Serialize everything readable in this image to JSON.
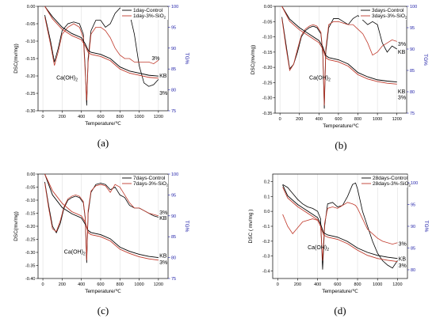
{
  "chart_data": [
    {
      "type": "line",
      "panel": "(a)",
      "xlabel": "Temperature/℃",
      "ylabel": "DSC(mv/mg)",
      "y2label": "TG%",
      "xlim": [
        -50,
        1300
      ],
      "xticks": [
        0,
        200,
        400,
        600,
        800,
        1000,
        1200
      ],
      "ylim": [
        -0.3,
        0.0
      ],
      "yticks": [
        "0.00",
        "-0.05",
        "-0.10",
        "-0.15",
        "-0.20",
        "-0.25",
        "-0.30"
      ],
      "y2lim": [
        75,
        100
      ],
      "y2ticks": [
        "100",
        "95",
        "90",
        "85",
        "80",
        "75"
      ],
      "legend": "top-right",
      "series": [
        {
          "name": "1day-Control",
          "color": "#000000",
          "axis": "dsc",
          "x": [
            20,
            80,
            120,
            160,
            200,
            260,
            320,
            380,
            420,
            440,
            455,
            470,
            500,
            550,
            600,
            650,
            700,
            750,
            800,
            850,
            900,
            950,
            1000,
            1050,
            1100,
            1150,
            1200
          ],
          "y": [
            -0.025,
            -0.1,
            -0.16,
            -0.12,
            -0.07,
            -0.05,
            -0.045,
            -0.05,
            -0.08,
            -0.18,
            -0.285,
            -0.15,
            -0.07,
            -0.04,
            -0.04,
            -0.06,
            -0.05,
            -0.02,
            -0.005,
            -0.003,
            -0.02,
            -0.08,
            -0.17,
            -0.22,
            -0.23,
            -0.225,
            -0.21
          ]
        },
        {
          "name": "1day-3%-SiO2",
          "color": "#c0392b",
          "axis": "dsc",
          "x": [
            20,
            80,
            120,
            160,
            200,
            260,
            320,
            380,
            420,
            440,
            455,
            470,
            500,
            550,
            600,
            650,
            700,
            750,
            800,
            850,
            900,
            950,
            1000,
            1050,
            1100,
            1150,
            1200
          ],
          "y": [
            -0.03,
            -0.11,
            -0.17,
            -0.13,
            -0.08,
            -0.06,
            -0.05,
            -0.06,
            -0.09,
            -0.19,
            -0.27,
            -0.16,
            -0.08,
            -0.06,
            -0.06,
            -0.07,
            -0.09,
            -0.12,
            -0.14,
            -0.15,
            -0.15,
            -0.16,
            -0.16,
            -0.16,
            -0.16,
            -0.165,
            -0.155
          ]
        },
        {
          "name": "KB",
          "color": "#000000",
          "axis": "tg",
          "x": [
            20,
            100,
            200,
            300,
            400,
            440,
            470,
            500,
            600,
            700,
            800,
            900,
            1000,
            1100,
            1200
          ],
          "y": [
            100,
            97.5,
            95,
            93.5,
            92.5,
            91,
            89.5,
            89,
            88.5,
            87.5,
            85.5,
            84.5,
            84,
            83.5,
            83.3
          ]
        },
        {
          "name": "3%",
          "color": "#c0392b",
          "axis": "tg",
          "x": [
            20,
            100,
            200,
            300,
            400,
            440,
            470,
            500,
            600,
            700,
            800,
            900,
            1000,
            1100,
            1200
          ],
          "y": [
            100,
            97,
            94.5,
            93,
            92,
            90.5,
            89,
            88.5,
            88,
            87,
            85,
            84,
            83.5,
            83,
            82.8
          ]
        }
      ],
      "annotations": [
        {
          "text": "Ca(OH)",
          "sub": "2",
          "x": 140,
          "y": -0.21
        },
        {
          "text": "KB",
          "x": 1210,
          "y": -0.205
        },
        {
          "text": "3%",
          "x": 1210,
          "y": -0.255
        },
        {
          "text": "3%",
          "x": 1130,
          "y": -0.155
        }
      ]
    },
    {
      "type": "line",
      "panel": "(b)",
      "xlabel": "Temperature/℃",
      "ylabel": "DSC(mv/mg)",
      "y2label": "TG%",
      "xlim": [
        -50,
        1300
      ],
      "xticks": [
        0,
        200,
        400,
        600,
        800,
        1000,
        1200
      ],
      "ylim": [
        -0.35,
        0.0
      ],
      "yticks": [
        "0.00",
        "-0.05",
        "-0.10",
        "-0.15",
        "-0.20",
        "-0.25",
        "-0.30",
        "-0.35"
      ],
      "y2lim": [
        75,
        100
      ],
      "y2ticks": [
        "100",
        "95",
        "90",
        "85",
        "80",
        "75"
      ],
      "legend": "top-right",
      "series": [
        {
          "name": "3days-Control",
          "color": "#000000",
          "axis": "dsc",
          "x": [
            20,
            60,
            100,
            140,
            180,
            220,
            260,
            300,
            340,
            380,
            420,
            440,
            455,
            470,
            500,
            550,
            600,
            650,
            700,
            750,
            800,
            850,
            900,
            950,
            1000,
            1050,
            1100,
            1150,
            1200
          ],
          "y": [
            -0.035,
            -0.12,
            -0.205,
            -0.19,
            -0.15,
            -0.1,
            -0.08,
            -0.07,
            -0.065,
            -0.07,
            -0.09,
            -0.16,
            -0.335,
            -0.15,
            -0.07,
            -0.04,
            -0.04,
            -0.05,
            -0.06,
            -0.04,
            -0.03,
            -0.045,
            -0.06,
            -0.05,
            -0.06,
            -0.12,
            -0.15,
            -0.13,
            -0.14
          ]
        },
        {
          "name": "3days-3%-SiO2",
          "color": "#c0392b",
          "axis": "dsc",
          "x": [
            20,
            60,
            100,
            140,
            180,
            220,
            260,
            300,
            340,
            380,
            420,
            440,
            455,
            470,
            500,
            550,
            600,
            650,
            700,
            750,
            800,
            850,
            900,
            950,
            1000,
            1050,
            1100,
            1150,
            1200
          ],
          "y": [
            -0.04,
            -0.13,
            -0.21,
            -0.19,
            -0.14,
            -0.095,
            -0.075,
            -0.065,
            -0.06,
            -0.065,
            -0.085,
            -0.15,
            -0.325,
            -0.14,
            -0.06,
            -0.05,
            -0.05,
            -0.055,
            -0.06,
            -0.06,
            -0.075,
            -0.09,
            -0.12,
            -0.16,
            -0.15,
            -0.13,
            -0.12,
            -0.11,
            -0.115
          ]
        },
        {
          "name": "KB",
          "color": "#000000",
          "axis": "tg",
          "x": [
            20,
            100,
            200,
            300,
            400,
            440,
            470,
            500,
            600,
            700,
            800,
            900,
            1000,
            1100,
            1200
          ],
          "y": [
            100,
            97,
            95,
            93.5,
            92,
            90.5,
            88.5,
            88,
            87.5,
            86.5,
            84.5,
            83.5,
            82.8,
            82.5,
            82.3
          ]
        },
        {
          "name": "3%",
          "color": "#c0392b",
          "axis": "tg",
          "x": [
            20,
            100,
            200,
            300,
            400,
            440,
            470,
            500,
            600,
            700,
            800,
            900,
            1000,
            1100,
            1200
          ],
          "y": [
            100,
            96.5,
            94.5,
            93,
            91.5,
            90,
            88,
            87.5,
            87,
            86,
            84,
            83,
            82.4,
            82,
            81.8
          ]
        }
      ],
      "annotations": [
        {
          "text": "Ca(OH)",
          "sub": "2",
          "x": 300,
          "y": -0.24
        },
        {
          "text": "KB",
          "x": 1210,
          "y": -0.285
        },
        {
          "text": "3%",
          "x": 1210,
          "y": -0.305
        },
        {
          "text": "3%",
          "x": 1210,
          "y": -0.13
        },
        {
          "text": "KB",
          "x": 1210,
          "y": -0.155
        }
      ]
    },
    {
      "type": "line",
      "panel": "(c)",
      "xlabel": "Temperature/℃",
      "ylabel": "DSC(mv/mg)",
      "y2label": "TG%",
      "xlim": [
        -50,
        1300
      ],
      "xticks": [
        0,
        200,
        400,
        600,
        800,
        1000,
        1200
      ],
      "ylim": [
        -0.4,
        0.0
      ],
      "yticks": [
        "0.00",
        "-0.05",
        "-0.10",
        "-0.15",
        "-0.20",
        "-0.25",
        "-0.30",
        "-0.35",
        "-0.40"
      ],
      "y2lim": [
        75,
        100
      ],
      "y2ticks": [
        "100",
        "95",
        "90",
        "85",
        "80",
        "75"
      ],
      "legend": "top-right",
      "series": [
        {
          "name": "7days-Control",
          "color": "#000000",
          "axis": "dsc",
          "x": [
            20,
            60,
            100,
            140,
            180,
            220,
            260,
            300,
            340,
            380,
            420,
            440,
            455,
            470,
            500,
            550,
            600,
            650,
            700,
            750,
            800,
            850,
            900,
            950,
            1000,
            1050,
            1100,
            1150,
            1200
          ],
          "y": [
            -0.03,
            -0.12,
            -0.2,
            -0.225,
            -0.19,
            -0.13,
            -0.1,
            -0.09,
            -0.085,
            -0.09,
            -0.11,
            -0.17,
            -0.34,
            -0.15,
            -0.07,
            -0.04,
            -0.035,
            -0.04,
            -0.06,
            -0.05,
            -0.08,
            -0.09,
            -0.12,
            -0.13,
            -0.13,
            -0.14,
            -0.15,
            -0.16,
            -0.165
          ]
        },
        {
          "name": "7days-3%-SiO2",
          "color": "#c0392b",
          "axis": "dsc",
          "x": [
            20,
            60,
            100,
            140,
            180,
            220,
            260,
            300,
            340,
            380,
            420,
            440,
            455,
            470,
            500,
            550,
            600,
            650,
            700,
            750,
            800,
            850,
            900,
            950,
            1000,
            1050,
            1100,
            1150,
            1200
          ],
          "y": [
            -0.035,
            -0.13,
            -0.21,
            -0.22,
            -0.18,
            -0.125,
            -0.095,
            -0.085,
            -0.08,
            -0.085,
            -0.105,
            -0.165,
            -0.33,
            -0.14,
            -0.065,
            -0.045,
            -0.04,
            -0.045,
            -0.07,
            -0.04,
            -0.05,
            -0.08,
            -0.11,
            -0.13,
            -0.13,
            -0.14,
            -0.15,
            -0.155,
            -0.16
          ]
        },
        {
          "name": "KB",
          "color": "#000000",
          "axis": "tg",
          "x": [
            20,
            100,
            200,
            300,
            400,
            440,
            470,
            500,
            600,
            700,
            800,
            900,
            1000,
            1100,
            1200
          ],
          "y": [
            100,
            95,
            92,
            90.5,
            89.5,
            88,
            86.5,
            86,
            85.5,
            84.5,
            82.5,
            81.5,
            80.8,
            80.3,
            80
          ]
        },
        {
          "name": "3%",
          "color": "#c0392b",
          "axis": "tg",
          "x": [
            20,
            100,
            200,
            300,
            400,
            440,
            470,
            500,
            600,
            700,
            800,
            900,
            1000,
            1100,
            1200
          ],
          "y": [
            100,
            96,
            93,
            91,
            90,
            88.5,
            86,
            85.5,
            85,
            84,
            82,
            81,
            80.2,
            79.7,
            79.4
          ]
        }
      ],
      "annotations": [
        {
          "text": "Ca(OH)",
          "sub": "2",
          "x": 220,
          "y": -0.305
        },
        {
          "text": "KB",
          "x": 1210,
          "y": -0.32
        },
        {
          "text": "3%",
          "x": 1210,
          "y": -0.345
        },
        {
          "text": "3%",
          "x": 1210,
          "y": -0.155
        },
        {
          "text": "KB",
          "x": 1210,
          "y": -0.175
        }
      ]
    },
    {
      "type": "line",
      "panel": "(d)",
      "xlabel": "Temperature/℃",
      "ylabel": "DSC ( mv/mg )",
      "y2label": "TG%",
      "xlim": [
        -50,
        1300
      ],
      "xticks": [
        0,
        200,
        400,
        600,
        800,
        1000,
        1200
      ],
      "ylim": [
        -0.45,
        0.25
      ],
      "yticks": [
        "0.2",
        "0.1",
        "0.0",
        "-0.1",
        "-0.2",
        "-0.3",
        "-0.4"
      ],
      "y2lim": [
        78,
        102
      ],
      "y2ticks": [
        "100",
        "95",
        "90",
        "85",
        "80"
      ],
      "legend": "top-right",
      "series": [
        {
          "name": "28days-Control",
          "color": "#000000",
          "axis": "dsc",
          "x": [
            50,
            100,
            150,
            200,
            250,
            300,
            350,
            400,
            430,
            450,
            470,
            500,
            550,
            600,
            650,
            700,
            750,
            780,
            800,
            850,
            900,
            950,
            1000,
            1050,
            1100,
            1150,
            1200
          ],
          "y": [
            0.18,
            0.16,
            0.12,
            0.08,
            0.05,
            0.03,
            0.02,
            0.0,
            -0.05,
            -0.39,
            -0.1,
            0.05,
            0.06,
            0.03,
            0.04,
            0.1,
            0.18,
            0.19,
            0.15,
            0.0,
            -0.1,
            -0.2,
            -0.28,
            -0.33,
            -0.36,
            -0.38,
            -0.33
          ]
        },
        {
          "name": "28days-3%-SiO2",
          "color": "#c0392b",
          "axis": "dsc",
          "x": [
            50,
            100,
            150,
            200,
            250,
            300,
            350,
            400,
            430,
            450,
            470,
            500,
            550,
            600,
            650,
            700,
            750,
            780,
            800,
            850,
            900,
            950,
            1000,
            1050,
            1100,
            1150,
            1200
          ],
          "y": [
            -0.02,
            -0.1,
            -0.15,
            -0.11,
            -0.07,
            -0.06,
            -0.05,
            -0.06,
            -0.1,
            -0.33,
            -0.08,
            0.02,
            0.03,
            0.02,
            0.04,
            0.06,
            0.05,
            0.04,
            0.02,
            -0.05,
            -0.12,
            -0.15,
            -0.18,
            -0.2,
            -0.21,
            -0.22,
            -0.21
          ]
        },
        {
          "name": "KB",
          "color": "#000000",
          "axis": "tg",
          "x": [
            50,
            100,
            200,
            300,
            400,
            430,
            460,
            500,
            600,
            700,
            800,
            900,
            1000,
            1100,
            1200
          ],
          "y": [
            99.5,
            97,
            95,
            93.5,
            92,
            90.5,
            88.5,
            88,
            87.5,
            86.5,
            85,
            84,
            83.3,
            82.9,
            82.6
          ]
        },
        {
          "name": "3%",
          "color": "#c0392b",
          "axis": "tg",
          "x": [
            50,
            100,
            200,
            300,
            400,
            430,
            460,
            500,
            600,
            700,
            800,
            900,
            1000,
            1100,
            1200
          ],
          "y": [
            99,
            96.5,
            94.5,
            93,
            91.5,
            90,
            88,
            87.5,
            87,
            86,
            84.5,
            83.3,
            82.6,
            82.2,
            81.9
          ]
        }
      ],
      "annotations": [
        {
          "text": "Ca(OH)",
          "sub": "2",
          "x": 300,
          "y": -0.255
        },
        {
          "text": "KB",
          "x": 1210,
          "y": -0.33
        },
        {
          "text": "3%",
          "x": 1210,
          "y": -0.375
        },
        {
          "text": "3%",
          "x": 1210,
          "y": -0.23
        }
      ]
    }
  ]
}
